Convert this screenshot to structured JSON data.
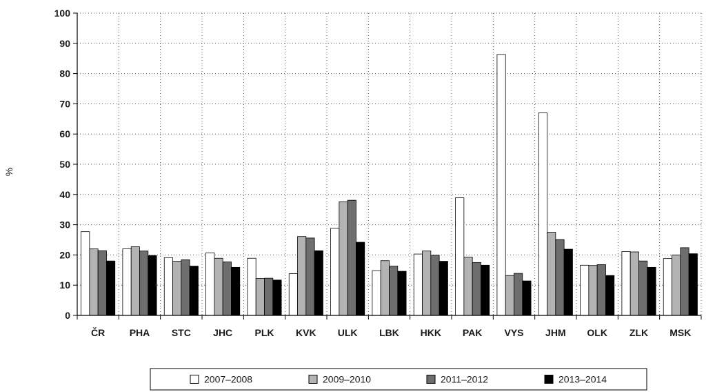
{
  "chart_data": {
    "type": "bar",
    "title": "",
    "xlabel": "",
    "ylabel": "%",
    "ylim": [
      0,
      100
    ],
    "yticks": [
      0,
      10,
      20,
      30,
      40,
      50,
      60,
      70,
      80,
      90,
      100
    ],
    "grid": "dotted, both axes",
    "legend_position": "bottom",
    "categories": [
      "ČR",
      "PHA",
      "STC",
      "JHC",
      "PLK",
      "KVK",
      "ULK",
      "LBK",
      "HKK",
      "PAK",
      "VYS",
      "JHM",
      "OLK",
      "ZLK",
      "MSK"
    ],
    "series": [
      {
        "name": "2007–2008",
        "color": "#ffffff",
        "values": [
          27.7,
          22.0,
          19.1,
          20.7,
          18.9,
          13.8,
          28.8,
          14.8,
          20.3,
          38.9,
          86.3,
          67.0,
          16.6,
          21.1,
          18.8
        ]
      },
      {
        "name": "2009–2010",
        "color": "#b3b3b3",
        "values": [
          22.0,
          22.7,
          17.9,
          18.9,
          12.2,
          26.1,
          37.6,
          18.1,
          21.3,
          19.3,
          13.2,
          27.5,
          16.5,
          21.0,
          20.0
        ]
      },
      {
        "name": "2011–2012",
        "color": "#6e6e6e",
        "values": [
          21.4,
          21.3,
          18.4,
          17.7,
          12.3,
          25.6,
          38.1,
          16.3,
          19.9,
          17.5,
          13.9,
          25.1,
          16.8,
          18.0,
          22.4
        ]
      },
      {
        "name": "2013–2014",
        "color": "#000000",
        "values": [
          18.0,
          19.8,
          16.3,
          15.9,
          11.7,
          21.4,
          24.2,
          14.6,
          17.9,
          16.6,
          11.4,
          21.9,
          13.2,
          15.9,
          20.4
        ]
      }
    ]
  }
}
